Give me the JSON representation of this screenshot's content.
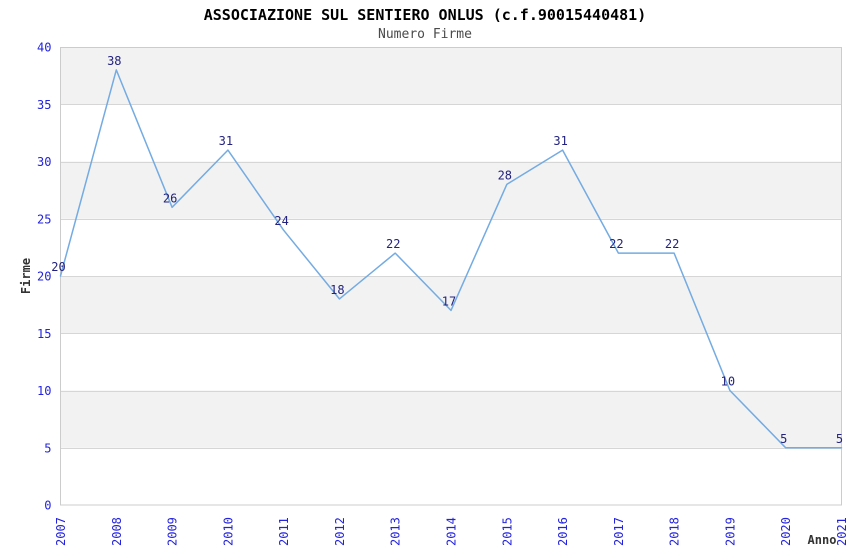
{
  "title": "ASSOCIAZIONE SUL SENTIERO ONLUS (c.f.90015440481)",
  "subtitle": "Numero Firme",
  "colors": {
    "line": "#74abe2",
    "tick_label": "#2323dd",
    "data_label": "#23237f",
    "band_gray": "#f2f2f2",
    "band_white": "#ffffff",
    "grid_line": "#d6d6d6",
    "plot_border": "#cccccc",
    "axis_title": "#333333",
    "title_color": "#000000",
    "subtitle_color": "#4a4a4a",
    "background": "#ffffff"
  },
  "chart_data": {
    "type": "line",
    "title": "ASSOCIAZIONE SUL SENTIERO ONLUS (c.f.90015440481)",
    "subtitle": "Numero Firme",
    "xlabel": "Anno",
    "ylabel": "Firme",
    "categories": [
      "2007",
      "2008",
      "2009",
      "2010",
      "2011",
      "2012",
      "2013",
      "2014",
      "2015",
      "2016",
      "2017",
      "2018",
      "2019",
      "2020",
      "2021"
    ],
    "series": [
      {
        "name": "Numero Firme",
        "values": [
          20,
          38,
          26,
          31,
          24,
          18,
          22,
          17,
          28,
          31,
          22,
          22,
          10,
          5,
          5
        ]
      }
    ],
    "ylim": [
      0,
      40
    ],
    "ytick_step": 5,
    "yticks": [
      0,
      5,
      10,
      15,
      20,
      25,
      30,
      35,
      40
    ],
    "grid": "horizontal-alternating-bands",
    "legend": "none",
    "data_labels": "visible",
    "x_tick_rotation": 90
  }
}
